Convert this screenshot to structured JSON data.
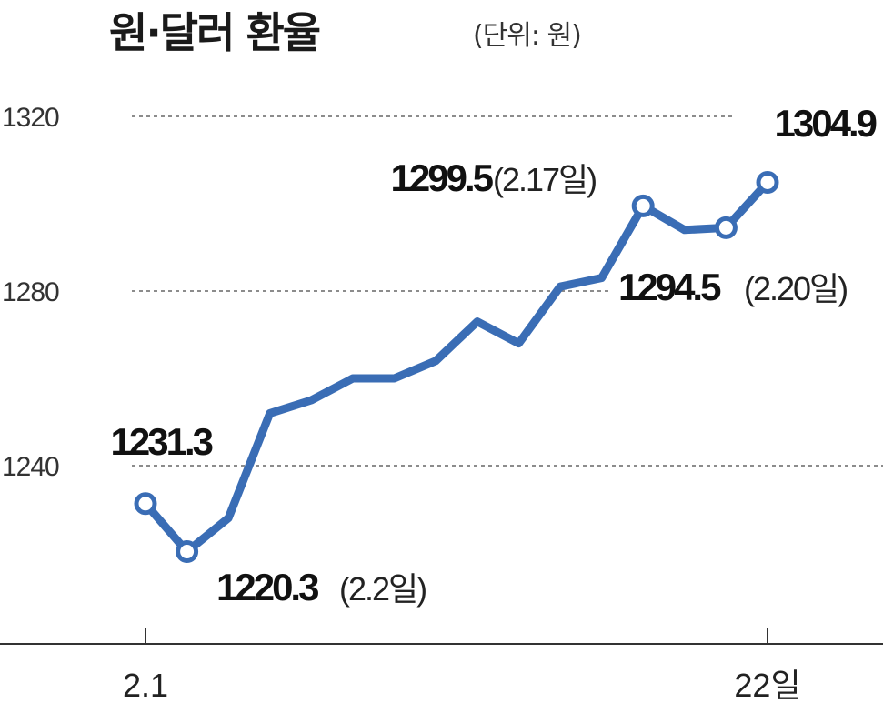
{
  "title": "원·달러 환율",
  "unit": "(단위: 원)",
  "chart_data": {
    "type": "line",
    "title": "원·달러 환율",
    "subtitle": "(단위: 원)",
    "ylim": [
      1200,
      1320
    ],
    "yticks": [
      "1240",
      "1280",
      "1320"
    ],
    "xticks": [
      "2.1",
      "22일"
    ],
    "grid": "horizontal dotted",
    "color": "#3a6db5",
    "series": [
      {
        "values": [
          1231.3,
          1220.3,
          1228,
          1252,
          1255,
          1260,
          1260,
          1264,
          1273,
          1268,
          1281,
          1283,
          1299.5,
          1294,
          1294.5,
          1304.9
        ]
      }
    ],
    "annotations": [
      {
        "index": 0,
        "value": "1231.3",
        "date": ""
      },
      {
        "index": 1,
        "value": "1220.3",
        "date": "(2.2일)"
      },
      {
        "index": 12,
        "value": "1299.5",
        "date": "(2.17일)"
      },
      {
        "index": 14,
        "value": "1294.5",
        "date": "(2.20일)"
      },
      {
        "index": 15,
        "value": "1304.9",
        "date": ""
      }
    ]
  }
}
